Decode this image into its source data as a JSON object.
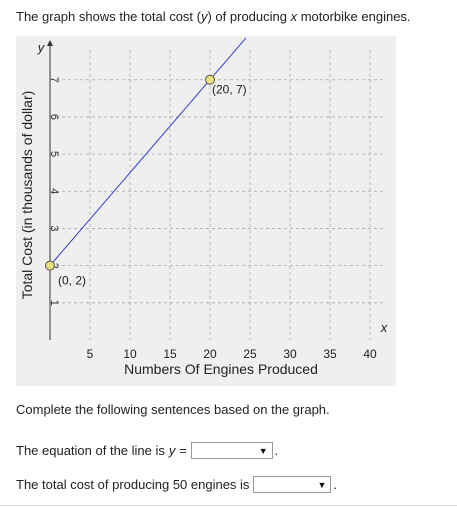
{
  "question": {
    "intro_pre": "The graph shows the total cost (",
    "intro_y": "y",
    "intro_mid": ") of producing ",
    "intro_x": "x",
    "intro_post": " motorbike engines."
  },
  "chart_data": {
    "type": "line",
    "xlabel": "Numbers Of Engines Produced",
    "ylabel": "Total Cost (in thousands of dollar)",
    "x_axis_var": "x",
    "y_axis_var": "y",
    "xlim": [
      0,
      42
    ],
    "ylim": [
      0,
      7.8
    ],
    "xticks": [
      5,
      10,
      15,
      20,
      25,
      30,
      35,
      40
    ],
    "yticks": [
      1,
      2,
      3,
      4,
      5,
      6,
      7
    ],
    "grid": true,
    "series": [
      {
        "x": [
          0,
          24.5
        ],
        "y": [
          2,
          8.125
        ],
        "color": "#3340cc"
      }
    ],
    "points": [
      {
        "x": 0,
        "y": 2,
        "label": "(0, 2)"
      },
      {
        "x": 20,
        "y": 7,
        "label": "(20, 7)"
      }
    ],
    "point_color": "#e8e07a"
  },
  "prompt": "Complete the following sentences based on the graph.",
  "q1": {
    "text": "The equation of the line is ",
    "var": "y =",
    "selected": ""
  },
  "q2": {
    "text": "The total cost of producing 50 engines is",
    "selected": ""
  },
  "period": ".",
  "caret": "▼"
}
